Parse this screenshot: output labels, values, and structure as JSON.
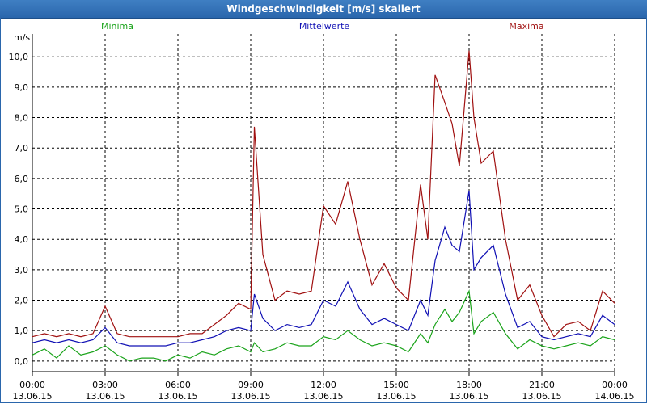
{
  "window_title": "Windgeschwindigkeit [m/s] skaliert",
  "chart_data": {
    "type": "line",
    "title": "Windgeschwindigkeit [m/s] skaliert",
    "ylabel": "m/s",
    "ylim": [
      -0.35,
      10.75
    ],
    "xlim": [
      0,
      24
    ],
    "y_ticks": [
      "0,0",
      "1,0",
      "2,0",
      "3,0",
      "4,0",
      "5,0",
      "6,0",
      "7,0",
      "8,0",
      "9,0",
      "10,0"
    ],
    "x_ticks": [
      {
        "time": "00:00",
        "date": "13.06.15"
      },
      {
        "time": "03:00",
        "date": "13.06.15"
      },
      {
        "time": "06:00",
        "date": "13.06.15"
      },
      {
        "time": "09:00",
        "date": "13.06.15"
      },
      {
        "time": "12:00",
        "date": "13.06.15"
      },
      {
        "time": "15:00",
        "date": "13.06.15"
      },
      {
        "time": "18:00",
        "date": "13.06.15"
      },
      {
        "time": "21:00",
        "date": "13.06.15"
      },
      {
        "time": "00:00",
        "date": "14.06.15"
      }
    ],
    "colors": {
      "Minima": "#1aa31a",
      "Mittelwerte": "#1010b4",
      "Maxima": "#a01010"
    },
    "series": [
      {
        "name": "Maxima",
        "x": [
          0,
          0.5,
          1,
          1.5,
          2,
          2.5,
          3,
          3.5,
          4,
          4.5,
          5,
          5.5,
          6,
          6.5,
          7,
          7.5,
          8,
          8.5,
          9,
          9.15,
          9.5,
          10,
          10.5,
          11,
          11.5,
          12,
          12.5,
          13,
          13.5,
          14,
          14.5,
          15,
          15.5,
          16,
          16.3,
          16.6,
          17,
          17.3,
          17.6,
          18,
          18.2,
          18.5,
          19,
          19.5,
          20,
          20.5,
          21,
          21.5,
          22,
          22.5,
          23,
          23.5,
          24
        ],
        "values": [
          0.8,
          0.9,
          0.8,
          0.9,
          0.8,
          0.9,
          1.8,
          0.9,
          0.8,
          0.8,
          0.8,
          0.8,
          0.8,
          0.9,
          0.9,
          1.2,
          1.5,
          1.9,
          1.7,
          7.7,
          3.5,
          2.0,
          2.3,
          2.2,
          2.3,
          5.1,
          4.5,
          5.9,
          4.0,
          2.5,
          3.2,
          2.4,
          2.0,
          5.8,
          4.0,
          9.4,
          8.5,
          7.8,
          6.4,
          10.2,
          8.0,
          6.5,
          6.9,
          4.0,
          2.0,
          2.5,
          1.5,
          0.8,
          1.2,
          1.3,
          1.0,
          2.3,
          1.9
        ]
      },
      {
        "name": "Mittelwerte",
        "x": [
          0,
          0.5,
          1,
          1.5,
          2,
          2.5,
          3,
          3.5,
          4,
          4.5,
          5,
          5.5,
          6,
          6.5,
          7,
          7.5,
          8,
          8.5,
          9,
          9.15,
          9.5,
          10,
          10.5,
          11,
          11.5,
          12,
          12.5,
          13,
          13.5,
          14,
          14.5,
          15,
          15.5,
          16,
          16.3,
          16.6,
          17,
          17.3,
          17.6,
          18,
          18.2,
          18.5,
          19,
          19.5,
          20,
          20.5,
          21,
          21.5,
          22,
          22.5,
          23,
          23.5,
          24
        ],
        "values": [
          0.6,
          0.7,
          0.6,
          0.7,
          0.6,
          0.7,
          1.1,
          0.6,
          0.5,
          0.5,
          0.5,
          0.5,
          0.6,
          0.6,
          0.7,
          0.8,
          1.0,
          1.1,
          1.0,
          2.2,
          1.4,
          1.0,
          1.2,
          1.1,
          1.2,
          2.0,
          1.8,
          2.6,
          1.7,
          1.2,
          1.4,
          1.2,
          1.0,
          2.0,
          1.5,
          3.3,
          4.4,
          3.8,
          3.6,
          5.6,
          3.0,
          3.4,
          3.8,
          2.2,
          1.1,
          1.3,
          0.8,
          0.7,
          0.8,
          0.9,
          0.8,
          1.5,
          1.2
        ]
      },
      {
        "name": "Minima",
        "x": [
          0,
          0.5,
          1,
          1.5,
          2,
          2.5,
          3,
          3.5,
          4,
          4.5,
          5,
          5.5,
          6,
          6.5,
          7,
          7.5,
          8,
          8.5,
          9,
          9.15,
          9.5,
          10,
          10.5,
          11,
          11.5,
          12,
          12.5,
          13,
          13.5,
          14,
          14.5,
          15,
          15.5,
          16,
          16.3,
          16.6,
          17,
          17.3,
          17.6,
          18,
          18.2,
          18.5,
          19,
          19.5,
          20,
          20.5,
          21,
          21.5,
          22,
          22.5,
          23,
          23.5,
          24
        ],
        "values": [
          0.2,
          0.4,
          0.1,
          0.5,
          0.2,
          0.3,
          0.5,
          0.2,
          0.0,
          0.1,
          0.1,
          0.0,
          0.2,
          0.1,
          0.3,
          0.2,
          0.4,
          0.5,
          0.3,
          0.6,
          0.3,
          0.4,
          0.6,
          0.5,
          0.5,
          0.8,
          0.7,
          1.0,
          0.7,
          0.5,
          0.6,
          0.5,
          0.3,
          0.9,
          0.6,
          1.2,
          1.7,
          1.3,
          1.6,
          2.3,
          0.9,
          1.3,
          1.6,
          0.9,
          0.4,
          0.7,
          0.5,
          0.4,
          0.5,
          0.6,
          0.5,
          0.8,
          0.7
        ]
      }
    ]
  }
}
